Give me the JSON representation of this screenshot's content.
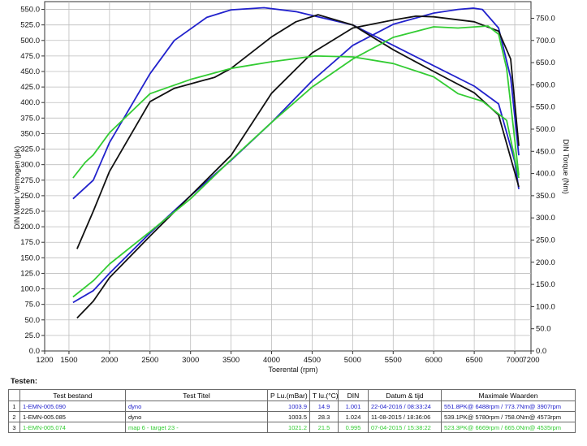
{
  "chart_data": {
    "type": "line",
    "xlabel": "Toerental (rpm)",
    "ylabel_left": "DIN Motor Vermogen (pk)",
    "ylabel_right": "DIN Torque (Nm)",
    "xlim": [
      1200,
      7200
    ],
    "ylim_left": [
      0,
      562.5
    ],
    "ylim_right": [
      0,
      787.5
    ],
    "x_ticks": [
      "1200",
      "1500",
      "2000",
      "2500",
      "3000",
      "3500",
      "4000",
      "4500",
      "5000",
      "5500",
      "6000",
      "6500",
      "7000",
      "7200"
    ],
    "y_left_ticks": [
      "0.0",
      "25.0",
      "50.0",
      "75.0",
      "100.0",
      "125.0",
      "150.0",
      "175.0",
      "200.0",
      "225.0",
      "250.0",
      "275.0",
      "300.0",
      "325.0",
      "350.0",
      "375.0",
      "400.0",
      "425.0",
      "450.0",
      "475.0",
      "500.0",
      "525.0",
      "550.0"
    ],
    "y_right_ticks": [
      "0.0",
      "50.0",
      "100.0",
      "150.0",
      "200.0",
      "250.0",
      "300.0",
      "350.0",
      "400.0",
      "450.0",
      "500.0",
      "550.0",
      "600.0",
      "650.0",
      "700.0",
      "750.0"
    ],
    "grid": true,
    "series": [
      {
        "name": "1-EMN-005.090",
        "color": "#2222cc",
        "measure": "power",
        "axis": "left",
        "points": [
          [
            1550,
            78
          ],
          [
            1800,
            97
          ],
          [
            2000,
            125
          ],
          [
            2500,
            190
          ],
          [
            3000,
            250
          ],
          [
            3500,
            307
          ],
          [
            4000,
            368
          ],
          [
            4500,
            435
          ],
          [
            5000,
            492
          ],
          [
            5500,
            526
          ],
          [
            6000,
            544
          ],
          [
            6300,
            550
          ],
          [
            6488,
            552
          ],
          [
            6600,
            550
          ],
          [
            6800,
            520
          ],
          [
            6950,
            440
          ],
          [
            7050,
            315
          ]
        ]
      },
      {
        "name": "1-EMN-005.090",
        "color": "#2222cc",
        "measure": "torque",
        "axis": "right",
        "points": [
          [
            1550,
            343
          ],
          [
            1800,
            385
          ],
          [
            2000,
            470
          ],
          [
            2500,
            625
          ],
          [
            2800,
            700
          ],
          [
            3200,
            752
          ],
          [
            3500,
            769
          ],
          [
            3907,
            773.7
          ],
          [
            4300,
            765
          ],
          [
            5000,
            735
          ],
          [
            5500,
            689
          ],
          [
            6000,
            643
          ],
          [
            6500,
            597
          ],
          [
            6800,
            557
          ],
          [
            7000,
            427
          ],
          [
            7050,
            365
          ]
        ]
      },
      {
        "name": "1-EMN-005.085",
        "color": "#111111",
        "measure": "power",
        "axis": "left",
        "points": [
          [
            1600,
            53
          ],
          [
            1800,
            80
          ],
          [
            2000,
            118
          ],
          [
            2500,
            185
          ],
          [
            3000,
            250
          ],
          [
            3500,
            315
          ],
          [
            4000,
            415
          ],
          [
            4500,
            480
          ],
          [
            5000,
            520
          ],
          [
            5500,
            533
          ],
          [
            5780,
            539.1
          ],
          [
            6000,
            538
          ],
          [
            6500,
            530
          ],
          [
            6800,
            515
          ],
          [
            6950,
            470
          ],
          [
            7050,
            330
          ]
        ]
      },
      {
        "name": "1-EMN-005.085",
        "color": "#111111",
        "measure": "torque",
        "axis": "right",
        "points": [
          [
            1600,
            230
          ],
          [
            1800,
            315
          ],
          [
            2000,
            405
          ],
          [
            2500,
            562
          ],
          [
            2800,
            592
          ],
          [
            3000,
            602
          ],
          [
            3300,
            617
          ],
          [
            3500,
            637
          ],
          [
            4000,
            708
          ],
          [
            4300,
            742
          ],
          [
            4573,
            758
          ],
          [
            5000,
            735
          ],
          [
            5500,
            679
          ],
          [
            6000,
            630
          ],
          [
            6500,
            582
          ],
          [
            6800,
            532
          ],
          [
            7050,
            370
          ]
        ]
      },
      {
        "name": "1-EMN-005.074",
        "color": "#33cc33",
        "measure": "power",
        "axis": "left",
        "points": [
          [
            1550,
            87
          ],
          [
            1800,
            113
          ],
          [
            2000,
            140
          ],
          [
            2500,
            192
          ],
          [
            3000,
            245
          ],
          [
            3500,
            308
          ],
          [
            4000,
            368
          ],
          [
            4500,
            425
          ],
          [
            5000,
            470
          ],
          [
            5500,
            505
          ],
          [
            6000,
            522
          ],
          [
            6300,
            520
          ],
          [
            6669,
            523.3
          ],
          [
            6800,
            510
          ],
          [
            6900,
            455
          ],
          [
            7050,
            283
          ]
        ]
      },
      {
        "name": "1-EMN-005.074",
        "color": "#33cc33",
        "measure": "torque",
        "axis": "right",
        "points": [
          [
            1550,
            390
          ],
          [
            1700,
            425
          ],
          [
            1800,
            442
          ],
          [
            2000,
            492
          ],
          [
            2500,
            580
          ],
          [
            3000,
            612
          ],
          [
            3500,
            637
          ],
          [
            4000,
            652
          ],
          [
            4535,
            665
          ],
          [
            5000,
            663
          ],
          [
            5500,
            648
          ],
          [
            6000,
            618
          ],
          [
            6300,
            580
          ],
          [
            6600,
            563
          ],
          [
            6900,
            520
          ],
          [
            7050,
            390
          ]
        ]
      }
    ]
  },
  "table": {
    "heading": "Testen:",
    "headers": [
      "",
      "Test bestand",
      "Test Titel",
      "P Lu.(mBar)",
      "T lu.(°C)",
      "DIN",
      "Datum & tijd",
      "Maximale Waarden"
    ],
    "rows": [
      {
        "index": "1",
        "file": "1-EMN-005.090",
        "title": "dyno",
        "p": "1003.9",
        "t": "14.9",
        "din": "1.001",
        "date": "22-04-2016 / 08:33:24",
        "max": "551.8PK@ 6488rpm / 773.7Nm@ 3907rpm",
        "color": "#2222cc"
      },
      {
        "index": "2",
        "file": "1-EMN-005.085",
        "title": "dyno",
        "p": "1003.5",
        "t": "28.3",
        "din": "1.024",
        "date": "11-08-2015 / 18:36:06",
        "max": "539.1PK@ 5780rpm / 758.0Nm@ 4573rpm",
        "color": "#111111"
      },
      {
        "index": "3",
        "file": "1-EMN-005.074",
        "title": "map 6 - target 23 -",
        "p": "1021.2",
        "t": "21.5",
        "din": "0.995",
        "date": "07-04-2015 / 15:38:22",
        "max": "523.3PK@ 6669rpm / 665.0Nm@ 4535rpm",
        "color": "#33cc33"
      }
    ]
  }
}
